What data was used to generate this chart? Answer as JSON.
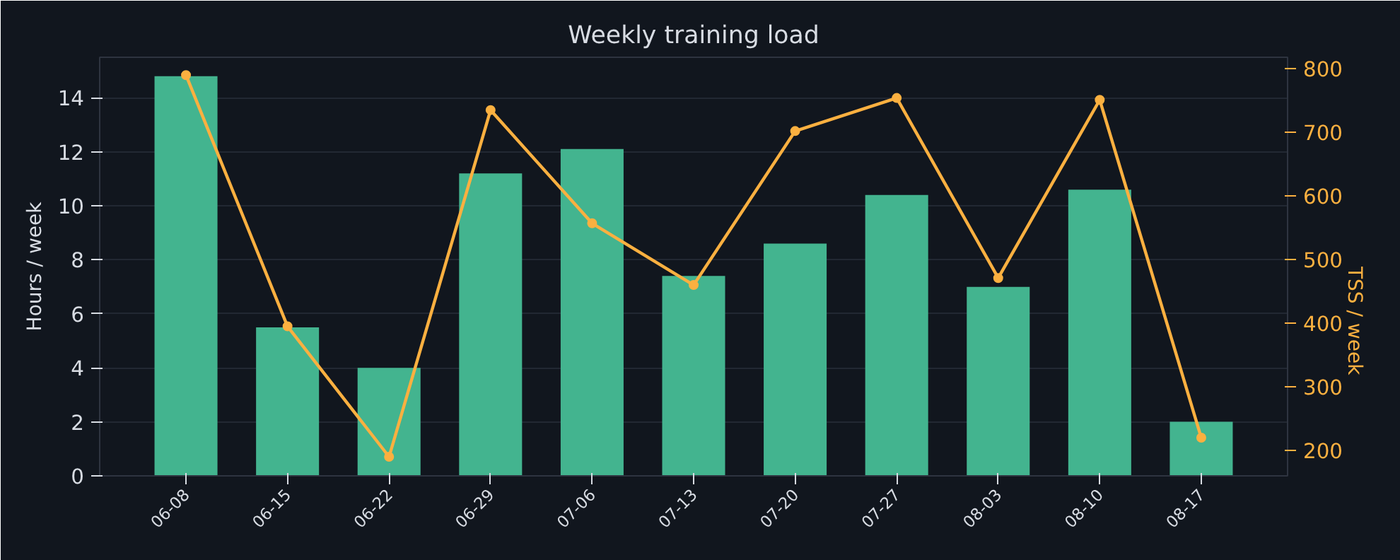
{
  "chart_data": {
    "type": "bar",
    "title": "Weekly training load",
    "ylabel": "Hours / week",
    "y2label": "TSS / week",
    "categories": [
      "06-08",
      "06-15",
      "06-22",
      "06-29",
      "07-06",
      "07-13",
      "07-20",
      "07-27",
      "08-03",
      "08-10",
      "08-17"
    ],
    "series": [
      {
        "color": "#43b48f",
        "values": [
          14.8,
          5.5,
          4.0,
          11.2,
          12.1,
          7.4,
          8.6,
          10.4,
          7.0,
          10.6,
          2.0
        ]
      },
      {
        "type": "line",
        "axis": "y2",
        "color": "#fbb040",
        "marker": "circle",
        "line_style": "solid",
        "values": [
          790,
          395,
          190,
          735,
          557,
          460,
          702,
          754,
          471,
          751,
          220
        ]
      }
    ],
    "ylim": [
      0,
      15.5
    ],
    "yticks": [
      0,
      2,
      4,
      6,
      8,
      10,
      12,
      14
    ],
    "y2lim": [
      160,
      818
    ],
    "y2ticks": [
      200,
      300,
      400,
      500,
      600,
      700,
      800
    ],
    "grid": "y"
  }
}
